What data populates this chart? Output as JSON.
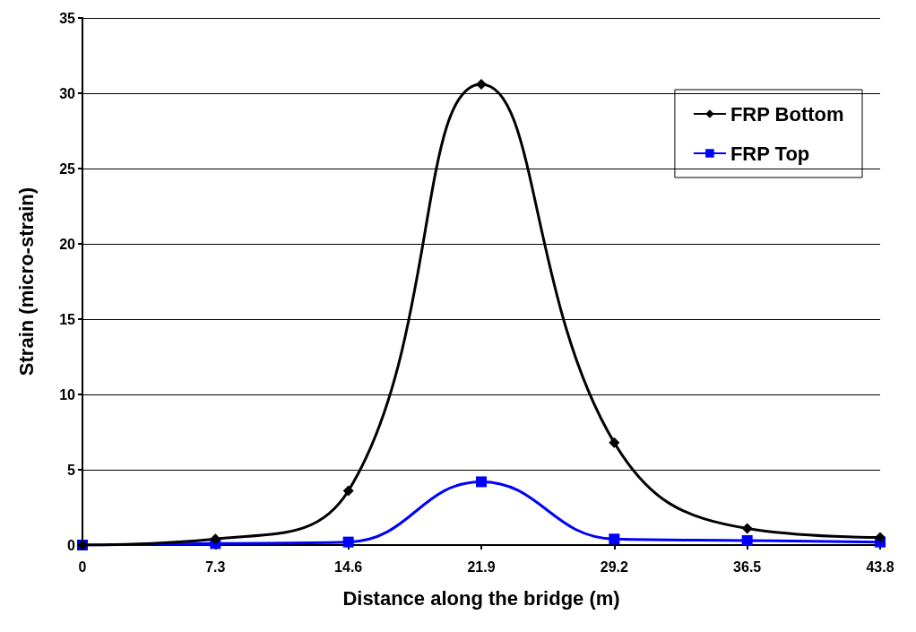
{
  "chart_data": {
    "type": "line",
    "xlabel": "Distance along the bridge (m)",
    "ylabel": "Strain (micro-strain)",
    "x": [
      0,
      7.3,
      14.6,
      21.9,
      29.2,
      36.5,
      43.8
    ],
    "series": [
      {
        "name": "FRP Bottom",
        "color": "#000000",
        "marker": "diamond",
        "values": [
          0,
          0.4,
          3.6,
          30.6,
          6.8,
          1.1,
          0.5
        ]
      },
      {
        "name": "FRP Top",
        "color": "#0000ff",
        "marker": "square",
        "values": [
          0,
          0.1,
          0.2,
          4.2,
          0.4,
          0.3,
          0.2
        ]
      }
    ],
    "xlim": [
      0,
      43.8
    ],
    "xticks": [
      0,
      7.3,
      14.6,
      21.9,
      29.2,
      36.5,
      43.8
    ],
    "ylim": [
      0,
      35
    ],
    "yticks": [
      0,
      5,
      10,
      15,
      20,
      25,
      30,
      35
    ],
    "grid": "y",
    "legend": "top right",
    "line_style": "solid"
  }
}
